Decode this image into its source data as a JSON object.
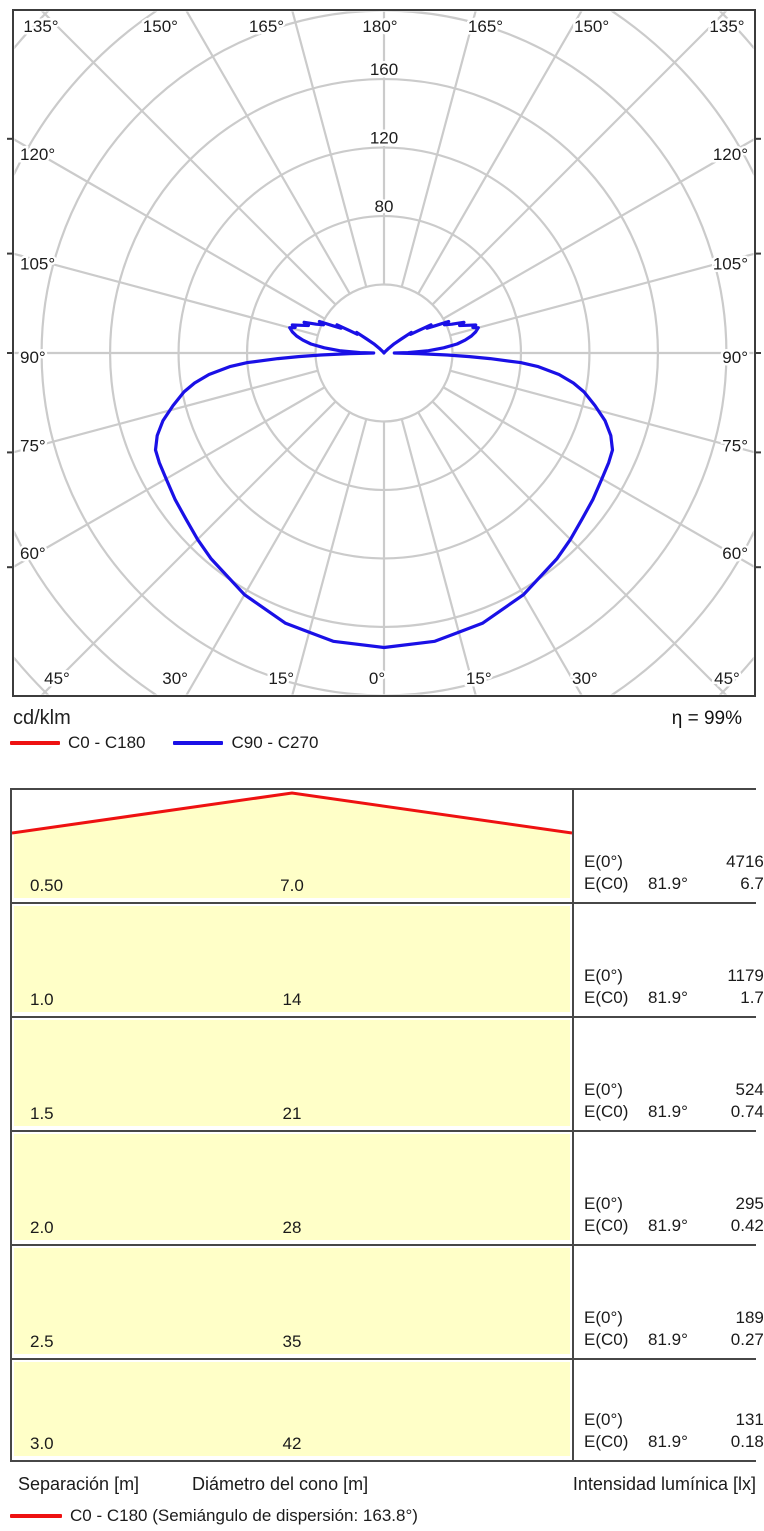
{
  "chart_data": [
    {
      "type": "line",
      "variant": "polar-luminous-intensity",
      "unit_label": "cd/klm",
      "efficiency_label": "η = 99%",
      "radial_axis": {
        "unit": "cd/klm",
        "rings": [
          40,
          80,
          120,
          160,
          200,
          240,
          280
        ],
        "labeled_rings": [
          80,
          120,
          160
        ]
      },
      "angle_axis": {
        "zero_direction": "down",
        "spoke_step_deg": 15,
        "labels_deg": [
          0,
          15,
          30,
          45,
          60,
          75,
          90,
          105,
          120,
          135,
          150,
          165,
          180
        ],
        "mirrored_left_right": true
      },
      "legend": [
        {
          "label": "C0 - C180",
          "color": "#ee1111"
        },
        {
          "label": "C90 - C270",
          "color": "#1a10e6"
        }
      ],
      "series": [
        {
          "name": "C90 - C270",
          "color": "#1a10e6",
          "mirror_symmetric": true,
          "points_gamma_deg_value": [
            [
              0,
              172
            ],
            [
              10,
              171
            ],
            [
              20,
              168
            ],
            [
              30,
              163
            ],
            [
              40,
              157
            ],
            [
              45,
              154
            ],
            [
              50,
              151
            ],
            [
              55,
              149
            ],
            [
              60,
              147
            ],
            [
              64,
              146
            ],
            [
              67,
              145
            ],
            [
              70,
              141
            ],
            [
              73,
              135
            ],
            [
              76,
              127
            ],
            [
              79,
              119
            ],
            [
              81,
              112
            ],
            [
              83,
              103
            ],
            [
              85,
              90
            ],
            [
              86,
              80
            ],
            [
              87,
              62
            ],
            [
              87.6,
              50
            ],
            [
              88.2,
              37
            ],
            [
              89,
              20
            ],
            [
              90,
              6
            ],
            [
              91,
              14
            ],
            [
              93,
              26
            ],
            [
              95,
              35
            ],
            [
              97,
              43
            ],
            [
              99,
              48
            ],
            [
              101,
              52
            ],
            [
              103,
              55
            ],
            [
              105,
              57
            ],
            [
              106,
              54
            ],
            [
              107,
              56
            ],
            [
              108.5,
              51
            ],
            [
              110,
              47
            ],
            [
              111,
              50
            ],
            [
              113,
              43
            ],
            [
              115,
              39
            ],
            [
              116,
              42
            ],
            [
              118,
              34
            ],
            [
              120,
              29
            ],
            [
              121,
              32
            ],
            [
              123,
              24
            ],
            [
              125,
              19
            ],
            [
              127,
              20
            ],
            [
              129,
              13
            ],
            [
              132,
              8
            ],
            [
              135,
              4
            ],
            [
              139,
              1
            ],
            [
              143,
              0
            ],
            [
              160,
              0
            ],
            [
              180,
              0
            ]
          ]
        }
      ]
    },
    {
      "type": "table",
      "columns": [
        "Separación [m]",
        "Diámetro del cono [m]",
        "Intensidad lumínica [lx]"
      ],
      "row_labels": {
        "e0": "E(0°)",
        "ec0": "E(C0)"
      },
      "rows": [
        {
          "separation": "0.50",
          "diameter": "7.0",
          "E0": "4716",
          "EC0_angle": "81.9°",
          "EC0": "6.7"
        },
        {
          "separation": "1.0",
          "diameter": "14",
          "E0": "1179",
          "EC0_angle": "81.9°",
          "EC0": "1.7"
        },
        {
          "separation": "1.5",
          "diameter": "21",
          "E0": "524",
          "EC0_angle": "81.9°",
          "EC0": "0.74"
        },
        {
          "separation": "2.0",
          "diameter": "28",
          "E0": "295",
          "EC0_angle": "81.9°",
          "EC0": "0.42"
        },
        {
          "separation": "2.5",
          "diameter": "35",
          "E0": "189",
          "EC0_angle": "81.9°",
          "EC0": "0.27"
        },
        {
          "separation": "3.0",
          "diameter": "42",
          "E0": "131",
          "EC0_angle": "81.9°",
          "EC0": "0.18"
        }
      ],
      "legend": {
        "label": "C0 - C180 (Semiángulo de dispersión: 163.8°)",
        "color": "#ee1111"
      },
      "cone_semi_angle_deg": 81.9,
      "cone_fill_color": "#ffffc8"
    }
  ]
}
